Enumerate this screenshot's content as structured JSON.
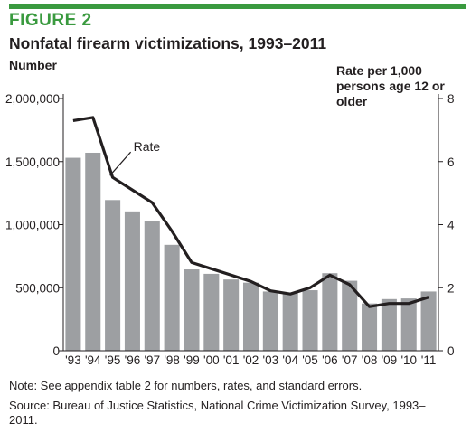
{
  "figure": {
    "label": "FIGURE 2",
    "title": "Nonfatal firearm victimizations, 1993–2011",
    "accent_color": "#3a9a3f",
    "note": "Note: See appendix table 2 for numbers, rates, and standard errors.",
    "source": "Source: Bureau of Justice Statistics, National Crime Victimization Survey, 1993–2011."
  },
  "chart_data": {
    "type": "bar",
    "title": "Nonfatal firearm victimizations, 1993–2011",
    "categories": [
      "'93",
      "'94",
      "'95",
      "'96",
      "'97",
      "'98",
      "'99",
      "'00",
      "'01",
      "'02",
      "'03",
      "'04",
      "'05",
      "'06",
      "'07",
      "'08",
      "'09",
      "'10",
      "'11"
    ],
    "ylabel_left": "Number",
    "ylabel_right": "Rate per 1,000 persons age 12 or older",
    "y_left": {
      "range": [
        0,
        2000000
      ],
      "ticks": [
        0,
        500000,
        1000000,
        1500000,
        2000000
      ],
      "tick_labels": [
        "0",
        "500,000",
        "1,000,000",
        "1,500,000",
        "2,000,000"
      ]
    },
    "y_right": {
      "range": [
        0,
        8
      ],
      "ticks": [
        0,
        2,
        4,
        6,
        8
      ],
      "tick_labels": [
        "0",
        "2",
        "4",
        "6",
        "8"
      ]
    },
    "bar_color": "#9d9fa2",
    "line_color": "#231f20",
    "line_label": "Rate",
    "grid": false,
    "series": [
      {
        "type": "bar",
        "axis": "left",
        "values": [
          1530000,
          1570000,
          1195000,
          1105000,
          1025000,
          840000,
          645000,
          610000,
          565000,
          540000,
          470000,
          460000,
          480000,
          615000,
          555000,
          375000,
          410000,
          415000,
          470000
        ]
      },
      {
        "type": "line",
        "axis": "right",
        "name": "Rate",
        "values": [
          7.3,
          7.4,
          5.5,
          5.1,
          4.7,
          3.8,
          2.8,
          2.6,
          2.4,
          2.2,
          1.9,
          1.8,
          2.0,
          2.4,
          2.1,
          1.4,
          1.5,
          1.5,
          1.7
        ]
      }
    ]
  }
}
